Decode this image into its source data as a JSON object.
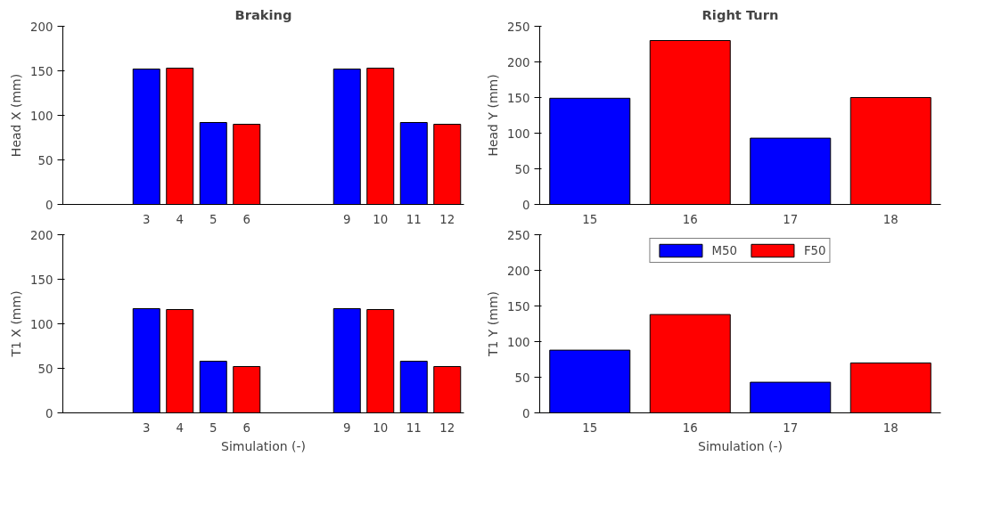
{
  "chart_data": [
    {
      "type": "bar",
      "title": "Braking",
      "ylabel": "Head X (mm)",
      "categories": [
        null,
        null,
        "3",
        "4",
        "5",
        "6",
        null,
        null,
        "9",
        "10",
        "11",
        "12"
      ],
      "series": [
        {
          "color": "#0000ff",
          "values": [
            0,
            null,
            152,
            null,
            92,
            null,
            0,
            null,
            152,
            null,
            92,
            null
          ]
        },
        {
          "color": "#ff0000",
          "values": [
            null,
            0,
            null,
            153,
            null,
            90,
            null,
            0,
            null,
            153,
            null,
            90
          ]
        }
      ],
      "ylim": [
        0,
        200
      ],
      "yticks": [
        0,
        50,
        100,
        150,
        200
      ],
      "grid": false
    },
    {
      "type": "bar",
      "title": "Right Turn",
      "ylabel": "Head Y (mm)",
      "categories": [
        "15",
        "16",
        "17",
        "18"
      ],
      "series": [
        {
          "color": "#0000ff",
          "values": [
            149,
            null,
            93,
            null
          ]
        },
        {
          "color": "#ff0000",
          "values": [
            null,
            230,
            null,
            150
          ]
        }
      ],
      "ylim": [
        0,
        250
      ],
      "yticks": [
        0,
        50,
        100,
        150,
        200,
        250
      ],
      "grid": false
    },
    {
      "type": "bar",
      "xlabel": "Simulation (-)",
      "ylabel": "T1 X (mm)",
      "categories": [
        null,
        null,
        "3",
        "4",
        "5",
        "6",
        null,
        null,
        "9",
        "10",
        "11",
        "12"
      ],
      "series": [
        {
          "color": "#0000ff",
          "values": [
            0,
            null,
            117,
            null,
            58,
            null,
            0,
            null,
            117,
            null,
            58,
            null
          ]
        },
        {
          "color": "#ff0000",
          "values": [
            null,
            0,
            null,
            116,
            null,
            52,
            null,
            0,
            null,
            116,
            null,
            52
          ]
        }
      ],
      "ylim": [
        0,
        200
      ],
      "yticks": [
        0,
        50,
        100,
        150,
        200
      ],
      "grid": false
    },
    {
      "type": "bar",
      "xlabel": "Simulation (-)",
      "ylabel": "T1 Y (mm)",
      "categories": [
        "15",
        "16",
        "17",
        "18"
      ],
      "series": [
        {
          "name": "M50",
          "color": "#0000ff",
          "values": [
            88,
            null,
            43,
            null
          ]
        },
        {
          "name": "F50",
          "color": "#ff0000",
          "values": [
            null,
            138,
            null,
            70
          ]
        }
      ],
      "ylim": [
        0,
        250
      ],
      "yticks": [
        0,
        50,
        100,
        150,
        200,
        250
      ],
      "grid": false,
      "legend": "top"
    }
  ]
}
